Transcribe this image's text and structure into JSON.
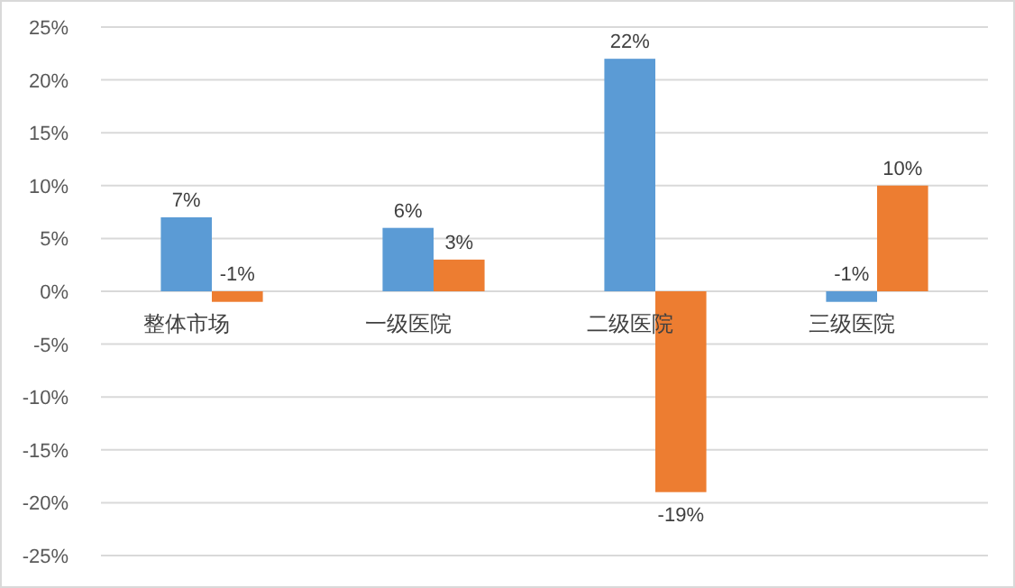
{
  "chart_data": {
    "type": "bar",
    "categories": [
      "整体市场",
      "一级医院",
      "二级医院",
      "三级医院"
    ],
    "series": [
      {
        "color": "#5b9bd5",
        "values": [
          7,
          6,
          22,
          -1
        ]
      },
      {
        "color": "#ed7d31",
        "values": [
          -1,
          3,
          -19,
          10
        ]
      }
    ],
    "ylim": [
      -25,
      25
    ],
    "yticks": [
      {
        "value": -25,
        "label": "-25%"
      },
      {
        "value": -20,
        "label": "-20%"
      },
      {
        "value": -15,
        "label": "-15%"
      },
      {
        "value": -10,
        "label": "-10%"
      },
      {
        "value": -5,
        "label": "-5%"
      },
      {
        "value": 0,
        "label": "0%"
      },
      {
        "value": 5,
        "label": "5%"
      },
      {
        "value": 10,
        "label": "10%"
      },
      {
        "value": 15,
        "label": "15%"
      },
      {
        "value": 20,
        "label": "20%"
      },
      {
        "value": 25,
        "label": "25%"
      }
    ],
    "value_labels": [
      [
        "7%",
        "6%",
        "22%",
        "-1%"
      ],
      [
        "-1%",
        "3%",
        "-19%",
        "10%"
      ]
    ],
    "grid": "y"
  }
}
